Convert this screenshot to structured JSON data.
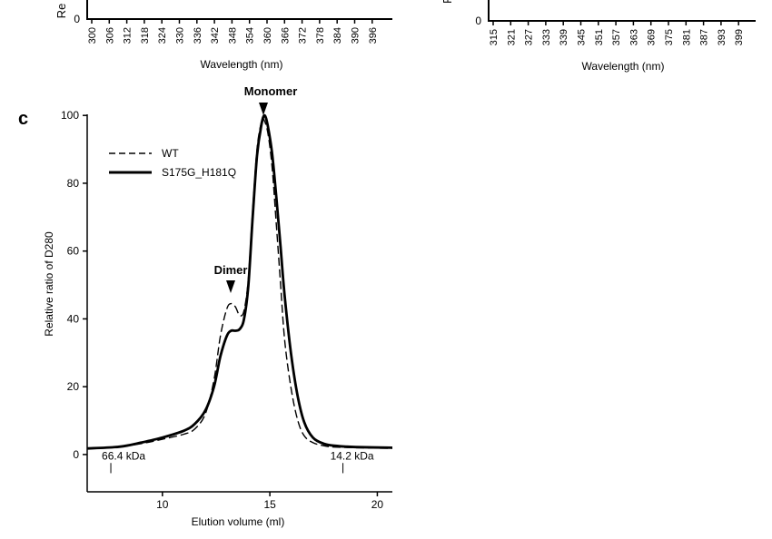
{
  "top_panels": [
    {
      "ylabel_fragment": "Re",
      "y_zero_label": "0",
      "xlabel": "Wavelength (nm)",
      "x_ticks": [
        "300",
        "306",
        "312",
        "318",
        "324",
        "330",
        "336",
        "342",
        "348",
        "354",
        "360",
        "366",
        "372",
        "378",
        "384",
        "390",
        "396"
      ]
    },
    {
      "ylabel_fragment": "F",
      "y_zero_label": "0",
      "xlabel": "Wavelength (nm)",
      "x_ticks": [
        "315",
        "321",
        "327",
        "333",
        "339",
        "345",
        "351",
        "357",
        "363",
        "369",
        "375",
        "381",
        "387",
        "393",
        "399"
      ]
    }
  ],
  "panel_c": {
    "panel_label": "c",
    "peak_labels": {
      "monomer": "Monomer",
      "dimer": "Dimer"
    },
    "markers": [
      {
        "label": "66.4 kDa",
        "x": 7.6
      },
      {
        "label": "14.2 kDa",
        "x": 18.4
      }
    ]
  },
  "chart_data": {
    "type": "line",
    "xlabel": "Elution volume (ml)",
    "ylabel": "Relative ratio of D280",
    "xlim": [
      6.5,
      20.7
    ],
    "ylim": [
      -11,
      103
    ],
    "x_ticks": [
      10,
      15,
      20
    ],
    "y_ticks": [
      0,
      20,
      40,
      60,
      80,
      100
    ],
    "legend_position": "top-left",
    "series": [
      {
        "name": "WT",
        "style": "dashed",
        "points": [
          [
            6.5,
            1.8
          ],
          [
            8,
            2.3
          ],
          [
            9,
            3.2
          ],
          [
            10,
            4.5
          ],
          [
            11,
            6
          ],
          [
            11.5,
            7.5
          ],
          [
            12,
            12
          ],
          [
            12.4,
            22
          ],
          [
            12.7,
            35
          ],
          [
            13,
            43
          ],
          [
            13.2,
            44.5
          ],
          [
            13.4,
            43.5
          ],
          [
            13.6,
            41
          ],
          [
            13.8,
            42.5
          ],
          [
            14,
            52
          ],
          [
            14.2,
            72
          ],
          [
            14.4,
            90
          ],
          [
            14.6,
            98
          ],
          [
            14.7,
            99
          ],
          [
            14.9,
            95
          ],
          [
            15.1,
            85
          ],
          [
            15.3,
            68
          ],
          [
            15.5,
            50
          ],
          [
            15.7,
            33
          ],
          [
            16,
            19
          ],
          [
            16.3,
            10
          ],
          [
            16.6,
            5.5
          ],
          [
            17,
            3.5
          ],
          [
            17.5,
            2.6
          ],
          [
            18,
            2.2
          ],
          [
            19,
            2
          ],
          [
            20.7,
            1.8
          ]
        ]
      },
      {
        "name": "S175G_H181Q",
        "style": "solid",
        "points": [
          [
            6.5,
            1.8
          ],
          [
            8,
            2.3
          ],
          [
            9,
            3.5
          ],
          [
            10,
            5
          ],
          [
            11,
            7
          ],
          [
            11.5,
            9
          ],
          [
            12,
            13
          ],
          [
            12.4,
            20
          ],
          [
            12.7,
            29
          ],
          [
            13,
            35
          ],
          [
            13.2,
            36.5
          ],
          [
            13.4,
            36.5
          ],
          [
            13.6,
            37
          ],
          [
            13.8,
            40
          ],
          [
            14,
            50
          ],
          [
            14.2,
            70
          ],
          [
            14.4,
            88
          ],
          [
            14.6,
            97
          ],
          [
            14.75,
            100
          ],
          [
            14.9,
            97
          ],
          [
            15.1,
            89
          ],
          [
            15.3,
            76
          ],
          [
            15.5,
            61
          ],
          [
            15.7,
            46
          ],
          [
            16,
            29
          ],
          [
            16.3,
            17
          ],
          [
            16.6,
            9.5
          ],
          [
            17,
            5
          ],
          [
            17.5,
            3.2
          ],
          [
            18,
            2.6
          ],
          [
            19,
            2.2
          ],
          [
            20.7,
            2
          ]
        ]
      }
    ]
  }
}
